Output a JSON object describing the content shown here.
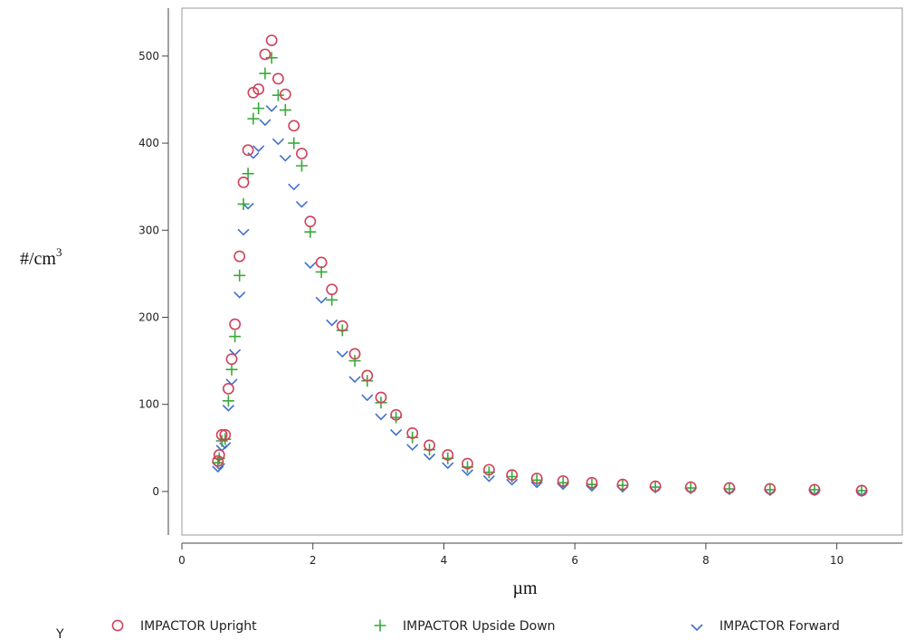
{
  "chart_data": {
    "type": "scatter",
    "xlabel": "µm",
    "ylabel_base": "#/cm",
    "ylabel_sup": "3",
    "xlim": [
      0,
      11
    ],
    "ylim": [
      -50,
      555
    ],
    "x_ticks": [
      0,
      2,
      4,
      6,
      8,
      10
    ],
    "y_ticks": [
      0,
      100,
      200,
      300,
      400,
      500
    ],
    "grid": false,
    "legend_placement": "bottom",
    "legend_prefix": "Y",
    "series": [
      {
        "name": "IMPACTOR Upright",
        "marker": "circle",
        "color": "#d0415a",
        "x": [
          0.55,
          0.57,
          0.61,
          0.66,
          0.71,
          0.76,
          0.81,
          0.88,
          0.94,
          1.01,
          1.09,
          1.17,
          1.27,
          1.37,
          1.47,
          1.58,
          1.71,
          1.83,
          1.96,
          2.13,
          2.29,
          2.45,
          2.64,
          2.83,
          3.04,
          3.27,
          3.52,
          3.78,
          4.06,
          4.36,
          4.69,
          5.04,
          5.42,
          5.82,
          6.26,
          6.73,
          7.23,
          7.77,
          8.36,
          8.98,
          9.66,
          10.38
        ],
        "y": [
          35,
          42,
          65,
          65,
          118,
          152,
          192,
          270,
          355,
          392,
          458,
          462,
          502,
          518,
          474,
          456,
          420,
          388,
          310,
          263,
          232,
          190,
          158,
          133,
          108,
          88,
          67,
          53,
          42,
          32,
          25,
          19,
          15,
          12,
          10,
          8,
          6,
          5,
          4,
          3,
          2,
          1
        ]
      },
      {
        "name": "IMPACTOR Upside Down",
        "marker": "plus",
        "color": "#3aa93a",
        "x": [
          0.55,
          0.57,
          0.61,
          0.66,
          0.71,
          0.76,
          0.81,
          0.88,
          0.94,
          1.01,
          1.09,
          1.17,
          1.27,
          1.37,
          1.47,
          1.58,
          1.71,
          1.83,
          1.96,
          2.13,
          2.29,
          2.45,
          2.64,
          2.83,
          3.04,
          3.27,
          3.52,
          3.78,
          4.06,
          4.36,
          4.69,
          5.04,
          5.42,
          5.82,
          6.26,
          6.73,
          7.23,
          7.77,
          8.36,
          8.98,
          9.66,
          10.38
        ],
        "y": [
          33,
          38,
          58,
          60,
          104,
          140,
          178,
          248,
          330,
          365,
          428,
          440,
          480,
          498,
          455,
          438,
          400,
          374,
          298,
          252,
          220,
          185,
          150,
          127,
          102,
          85,
          62,
          48,
          38,
          28,
          22,
          17,
          13,
          10,
          8,
          7,
          5,
          4,
          3,
          2,
          2,
          1
        ]
      },
      {
        "name": "IMPACTOR Forward",
        "marker": "diamond",
        "color": "#3f6fd0",
        "x": [
          0.55,
          0.57,
          0.61,
          0.66,
          0.71,
          0.76,
          0.81,
          0.88,
          0.94,
          1.01,
          1.09,
          1.17,
          1.27,
          1.37,
          1.47,
          1.58,
          1.71,
          1.83,
          1.96,
          2.13,
          2.29,
          2.45,
          2.64,
          2.83,
          3.04,
          3.27,
          3.52,
          3.78,
          4.06,
          4.36,
          4.69,
          5.04,
          5.42,
          5.82,
          6.26,
          6.73,
          7.23,
          7.77,
          8.36,
          8.98,
          9.66,
          10.38
        ],
        "y": [
          28,
          31,
          52,
          55,
          98,
          128,
          162,
          228,
          300,
          330,
          388,
          396,
          426,
          442,
          404,
          385,
          352,
          332,
          262,
          222,
          196,
          160,
          131,
          110,
          88,
          70,
          53,
          42,
          32,
          24,
          17,
          13,
          10,
          8,
          6,
          5,
          4,
          3,
          2,
          1,
          1,
          0
        ]
      }
    ]
  }
}
